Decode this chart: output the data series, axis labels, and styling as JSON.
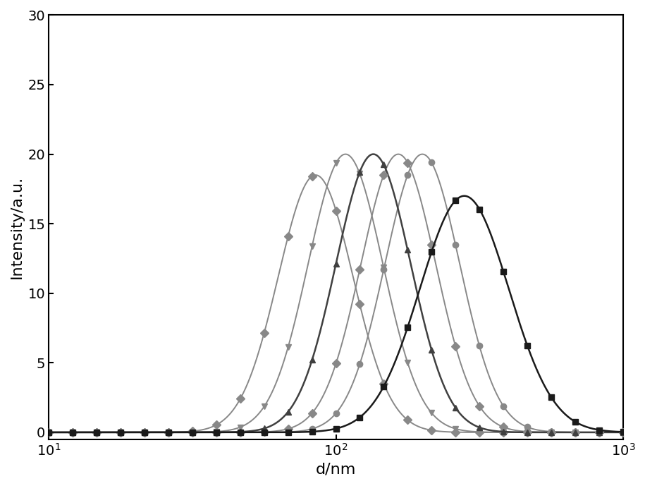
{
  "curves": [
    {
      "peak_nm": 85,
      "sigma_log": 0.13,
      "amplitude": 18.5,
      "color": "#888888",
      "marker": "D",
      "markersize": 6,
      "linewidth": 1.4,
      "zorder": 2
    },
    {
      "peak_nm": 108,
      "sigma_log": 0.13,
      "amplitude": 20.0,
      "color": "#888888",
      "marker": "v",
      "markersize": 6,
      "linewidth": 1.4,
      "zorder": 2
    },
    {
      "peak_nm": 135,
      "sigma_log": 0.13,
      "amplitude": 20.0,
      "color": "#404040",
      "marker": "^",
      "markersize": 6,
      "linewidth": 1.8,
      "zorder": 3
    },
    {
      "peak_nm": 165,
      "sigma_log": 0.13,
      "amplitude": 20.0,
      "color": "#888888",
      "marker": "D",
      "markersize": 6,
      "linewidth": 1.4,
      "zorder": 2
    },
    {
      "peak_nm": 200,
      "sigma_log": 0.13,
      "amplitude": 20.0,
      "color": "#888888",
      "marker": "o",
      "markersize": 6,
      "linewidth": 1.4,
      "zorder": 2
    },
    {
      "peak_nm": 280,
      "sigma_log": 0.155,
      "amplitude": 17.0,
      "color": "#1a1a1a",
      "marker": "s",
      "markersize": 6,
      "linewidth": 1.8,
      "zorder": 3
    }
  ],
  "xlim_log": [
    1.0,
    3.0
  ],
  "ylim": [
    -0.5,
    30
  ],
  "yticks": [
    0,
    5,
    10,
    15,
    20,
    25,
    30
  ],
  "xlabel": "d/nm",
  "ylabel": "Intensity/a.u.",
  "background_color": "#ffffff",
  "n_marker_points": 25,
  "label_fontsize": 16,
  "tick_fontsize": 14
}
